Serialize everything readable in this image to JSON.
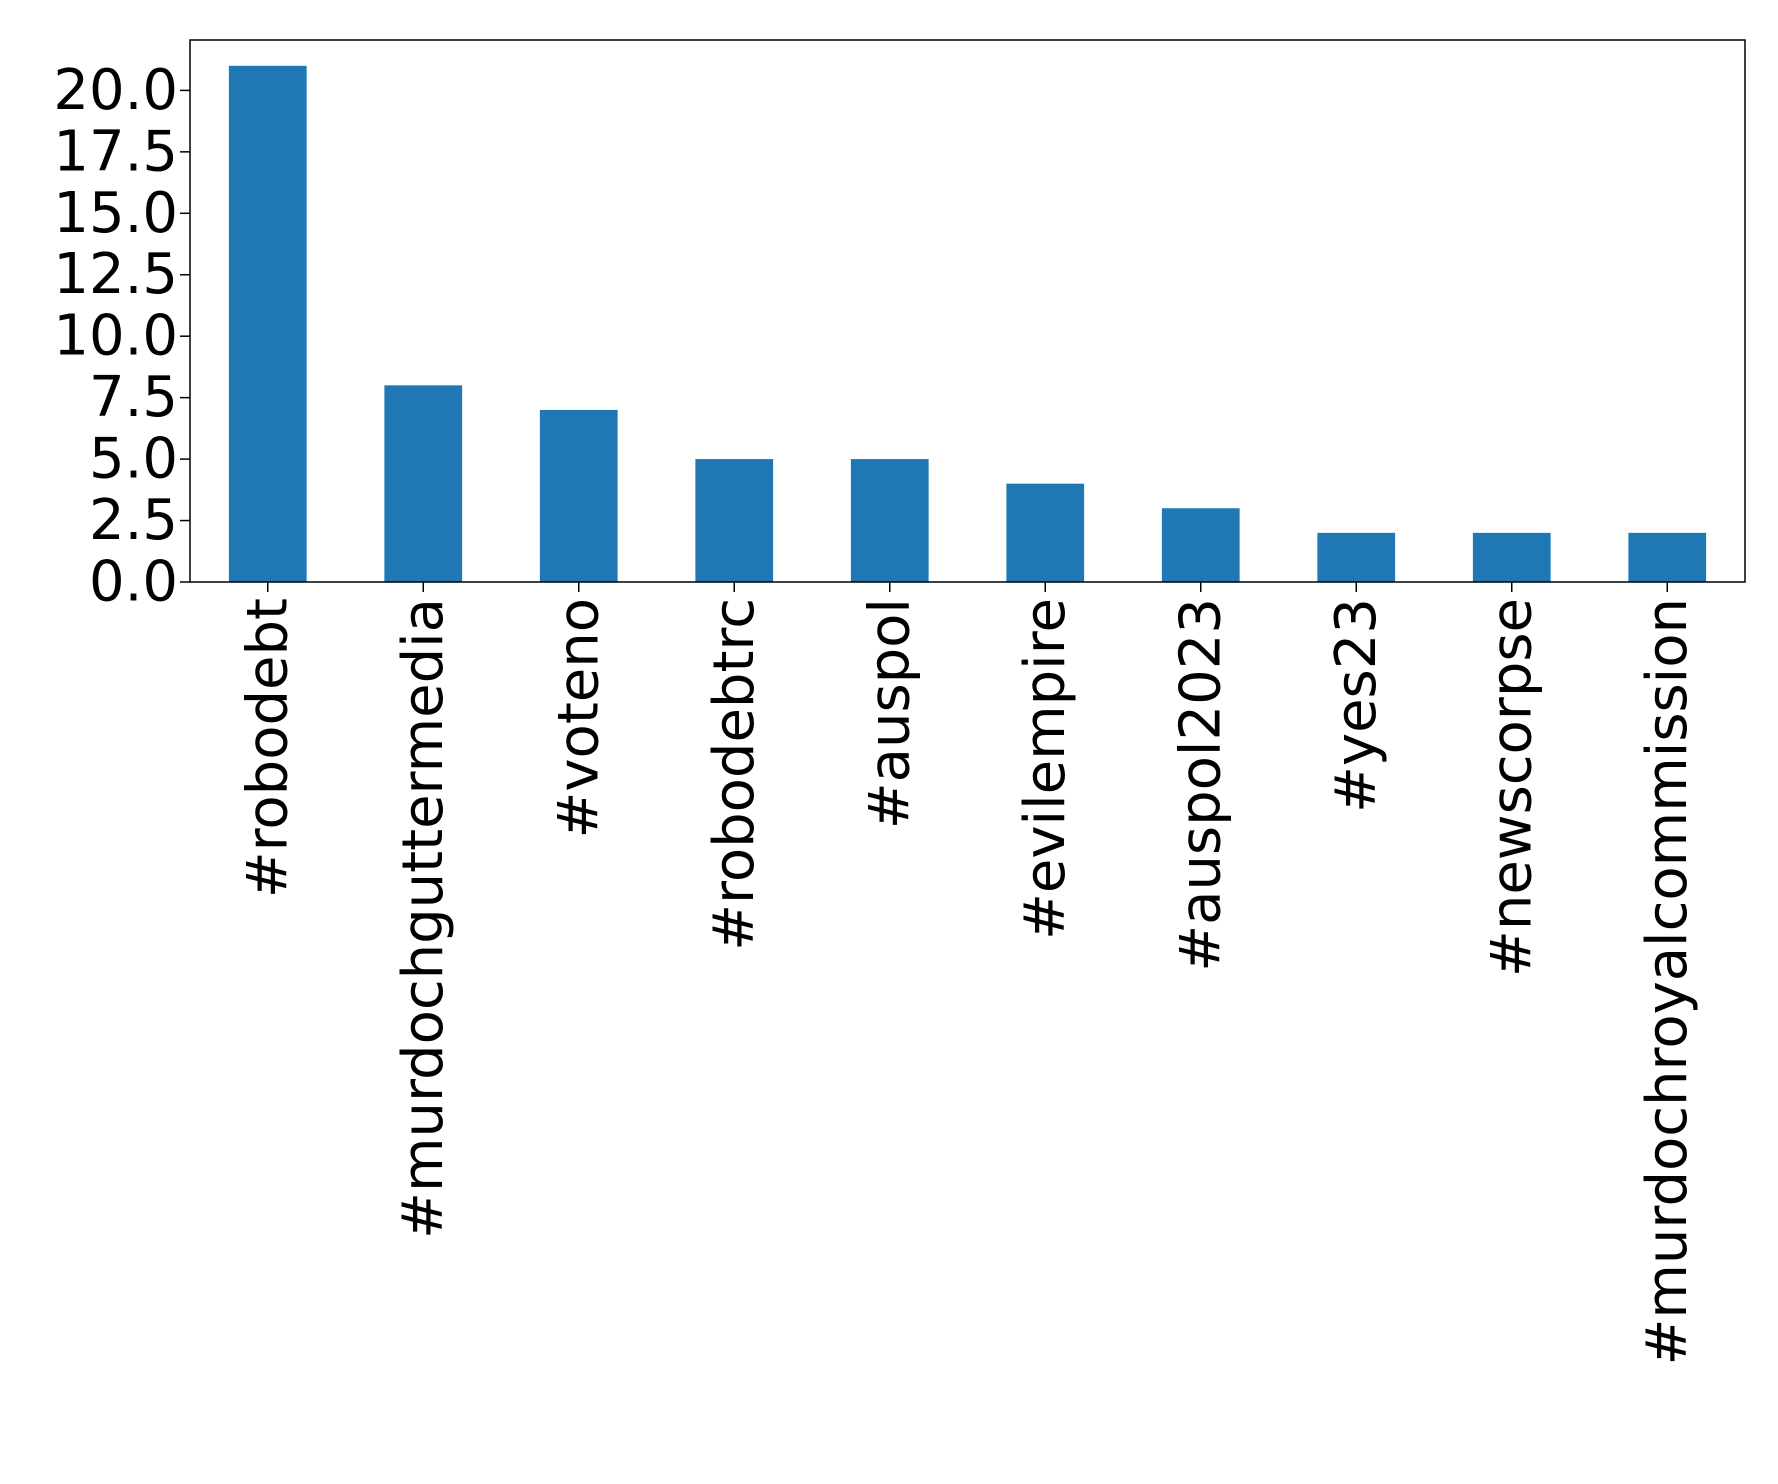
{
  "chart_data": {
    "type": "bar",
    "categories": [
      "#robodebt",
      "#murdochguttermedia",
      "#voteno",
      "#robodebtrc",
      "#auspol",
      "#evilempire",
      "#auspol2023",
      "#yes23",
      "#newscorpse",
      "#murdochroyalcommission"
    ],
    "values": [
      21,
      8,
      7,
      5,
      5,
      4,
      3,
      2,
      2,
      2
    ],
    "title": "",
    "xlabel": "",
    "ylabel": "",
    "ylim": [
      0,
      22.05
    ],
    "yticks": [
      "0.0",
      "2.5",
      "5.0",
      "7.5",
      "10.0",
      "12.5",
      "15.0",
      "17.5",
      "20.0"
    ],
    "bar_color": "#1f77b4",
    "grid": false,
    "legend": "none"
  }
}
